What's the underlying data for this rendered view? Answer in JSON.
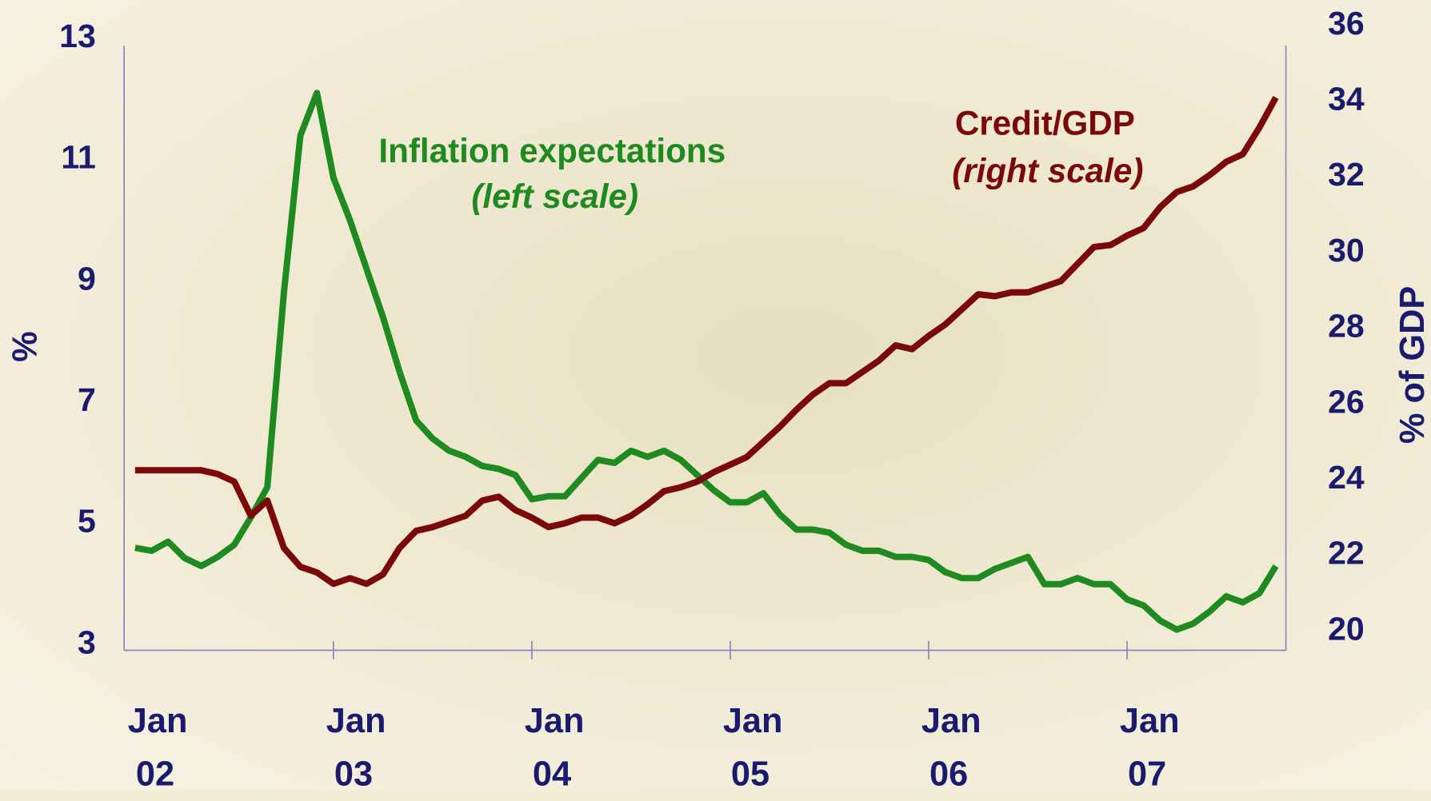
{
  "chart_data": {
    "type": "line",
    "categories": [
      "Jan 02",
      null,
      null,
      null,
      null,
      null,
      null,
      null,
      null,
      null,
      null,
      null,
      "Jan 03",
      null,
      null,
      null,
      null,
      null,
      null,
      null,
      null,
      null,
      null,
      null,
      "Jan 04",
      null,
      null,
      null,
      null,
      null,
      null,
      null,
      null,
      null,
      null,
      null,
      "Jan 05",
      null,
      null,
      null,
      null,
      null,
      null,
      null,
      null,
      null,
      null,
      null,
      "Jan 06",
      null,
      null,
      null,
      null,
      null,
      null,
      null,
      null,
      null,
      null,
      null,
      "Jan 07",
      null,
      null,
      null,
      null,
      null,
      null,
      null,
      null,
      null
    ],
    "series": [
      {
        "name": "Inflation expectations",
        "color": "#1f8a1f",
        "axis": "y",
        "values": [
          4.6,
          4.55,
          4.7,
          4.43,
          4.3,
          4.45,
          4.65,
          5.1,
          5.6,
          8.8,
          11.4,
          12.1,
          10.7,
          10.0,
          9.2,
          8.4,
          7.5,
          6.7,
          6.4,
          6.2,
          6.1,
          5.95,
          5.9,
          5.8,
          5.4,
          5.45,
          5.45,
          5.75,
          6.05,
          6.0,
          6.2,
          6.1,
          6.2,
          6.05,
          5.8,
          5.55,
          5.35,
          5.35,
          5.5,
          5.15,
          4.9,
          4.9,
          4.85,
          4.65,
          4.55,
          4.55,
          4.45,
          4.45,
          4.4,
          4.2,
          4.1,
          4.1,
          4.25,
          4.35,
          4.45,
          4.0,
          4.0,
          4.1,
          4.0,
          4.0,
          3.75,
          3.65,
          3.4,
          3.25,
          3.35,
          3.55,
          3.8,
          3.7,
          3.85,
          4.3
        ]
      },
      {
        "name": "Credit/GDP",
        "color": "#7a0a0a",
        "axis": "y2",
        "values": [
          24.25,
          24.25,
          24.25,
          24.25,
          24.25,
          24.15,
          23.95,
          23.05,
          23.45,
          22.2,
          21.7,
          21.55,
          21.25,
          21.4,
          21.25,
          21.5,
          22.2,
          22.65,
          22.75,
          22.9,
          23.05,
          23.45,
          23.55,
          23.2,
          23.0,
          22.75,
          22.85,
          23.0,
          23.0,
          22.85,
          23.05,
          23.35,
          23.7,
          23.8,
          23.95,
          24.2,
          24.4,
          24.6,
          25.0,
          25.4,
          25.85,
          26.25,
          26.55,
          26.55,
          26.85,
          27.15,
          27.55,
          27.45,
          27.8,
          28.1,
          28.5,
          28.9,
          28.85,
          28.95,
          28.95,
          29.1,
          29.25,
          29.7,
          30.15,
          30.2,
          30.45,
          30.65,
          31.2,
          31.6,
          31.75,
          32.05,
          32.4,
          32.6,
          33.3,
          34.1
        ]
      }
    ],
    "annotations": [
      {
        "text": "Inflation expectations",
        "color": "#1f8a1f",
        "italic": false
      },
      {
        "text": "(left scale)",
        "color": "#1f8a1f",
        "italic": true
      },
      {
        "text": "Credit/GDP",
        "color": "#7a0a0a",
        "italic": false
      },
      {
        "text": "(right scale)",
        "color": "#7a0a0a",
        "italic": true
      }
    ],
    "ylabel": "%",
    "y2label": "% of GDP",
    "ylim": [
      3,
      13
    ],
    "yticks": [
      3,
      5,
      7,
      9,
      11,
      13
    ],
    "y2lim": [
      20,
      36
    ],
    "y2ticks": [
      20,
      22,
      24,
      26,
      28,
      30,
      32,
      34,
      36
    ]
  }
}
